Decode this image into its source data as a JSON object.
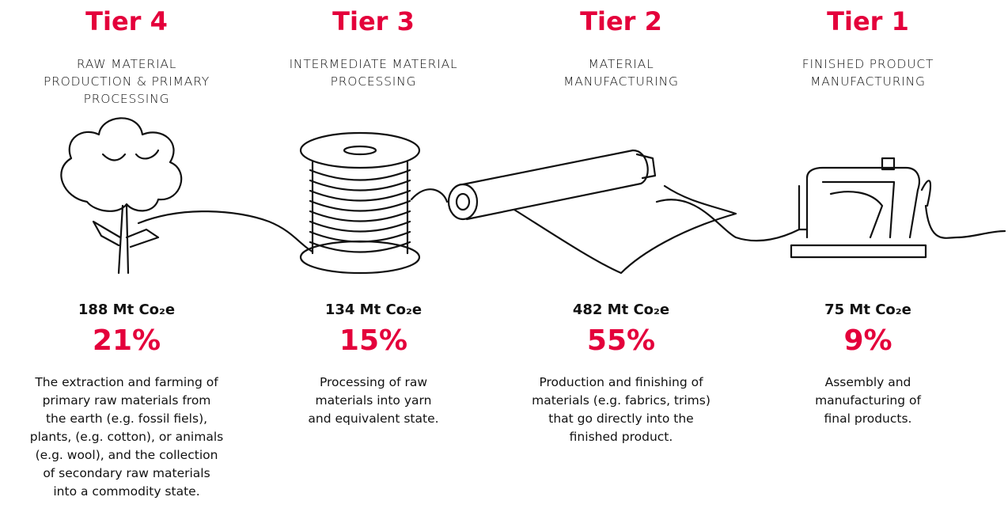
{
  "tiers": [
    {
      "title": "Tier 4",
      "subtitle": "RAW MATERIAL\nPRODUCTION & PRIMARY\nPROCESSING",
      "emissions": "188 Mt Co₂e",
      "share": "21%",
      "description": "The extraction and farming of\nprimary raw materials from\nthe earth (e.g. fossil fiels),\nplants, (e.g. cotton), or animals\n(e.g. wool), and the collection\nof secondary raw materials\ninto a commodity state."
    },
    {
      "title": "Tier 3",
      "subtitle": "INTERMEDIATE MATERIAL\nPROCESSING",
      "emissions": "134 Mt Co₂e",
      "share": "15%",
      "description": "Processing of raw\nmaterials into yarn\nand equivalent state."
    },
    {
      "title": "Tier 2",
      "subtitle": "MATERIAL\nMANUFACTURING",
      "emissions": "482 Mt Co₂e",
      "share": "55%",
      "description": "Production and finishing of\nmaterials (e.g. fabrics, trims)\nthat go directly into the\nfinished product."
    },
    {
      "title": "Tier 1",
      "subtitle": "FINISHED PRODUCT\nMANUFACTURING",
      "emissions": "75 Mt Co₂e",
      "share": "9%",
      "description": "Assembly and\nmanufacturing of\nfinal products."
    }
  ]
}
